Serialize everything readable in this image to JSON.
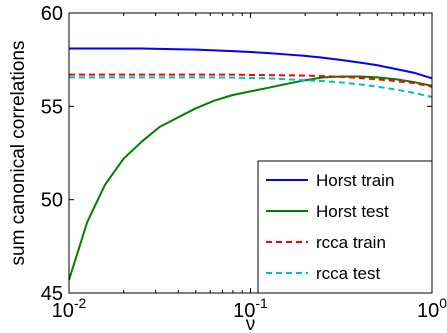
{
  "chart_data": {
    "type": "line",
    "xlabel": "ν",
    "ylabel": "sum canonical correlations",
    "xscale": "log",
    "xlim": [
      0.01,
      1
    ],
    "ylim": [
      45,
      60
    ],
    "xticks": [
      {
        "base": "10",
        "exp": "-2"
      },
      {
        "base": "10",
        "exp": "-1"
      },
      {
        "base": "10",
        "exp": "0"
      }
    ],
    "yticks": [
      "45",
      "50",
      "55",
      "60"
    ],
    "grid": false,
    "legend_position": "bottom-right",
    "x": [
      0.01,
      0.0126,
      0.0158,
      0.02,
      0.0251,
      0.0316,
      0.0398,
      0.0501,
      0.0631,
      0.0794,
      0.1,
      0.126,
      0.158,
      0.2,
      0.251,
      0.316,
      0.398,
      0.501,
      0.631,
      0.794,
      1.0
    ],
    "series": [
      {
        "name": "Horst train",
        "color": "#0000ff",
        "dash": "solid",
        "values": [
          58.1,
          58.1,
          58.1,
          58.1,
          58.1,
          58.08,
          58.06,
          58.04,
          58.0,
          57.96,
          57.91,
          57.85,
          57.78,
          57.7,
          57.6,
          57.48,
          57.35,
          57.2,
          57.0,
          56.8,
          56.5
        ]
      },
      {
        "name": "Horst test",
        "color": "#008000",
        "dash": "solid",
        "values": [
          45.7,
          48.8,
          50.8,
          52.2,
          53.1,
          53.9,
          54.4,
          54.9,
          55.3,
          55.6,
          55.8,
          56.0,
          56.2,
          56.4,
          56.55,
          56.6,
          56.6,
          56.55,
          56.45,
          56.3,
          56.1
        ]
      },
      {
        "name": "rcca train",
        "color": "#ff0000",
        "dash": "dashed",
        "values": [
          56.7,
          56.7,
          56.7,
          56.7,
          56.7,
          56.7,
          56.7,
          56.7,
          56.7,
          56.7,
          56.68,
          56.67,
          56.66,
          56.65,
          56.62,
          56.58,
          56.52,
          56.45,
          56.35,
          56.25,
          56.05
        ]
      },
      {
        "name": "rcca test",
        "color": "#00bfbf",
        "dash": "dashed",
        "values": [
          56.55,
          56.55,
          56.55,
          56.55,
          56.55,
          56.55,
          56.55,
          56.55,
          56.55,
          56.54,
          56.52,
          56.5,
          56.45,
          56.4,
          56.35,
          56.28,
          56.18,
          56.05,
          55.9,
          55.72,
          55.5
        ]
      }
    ]
  }
}
